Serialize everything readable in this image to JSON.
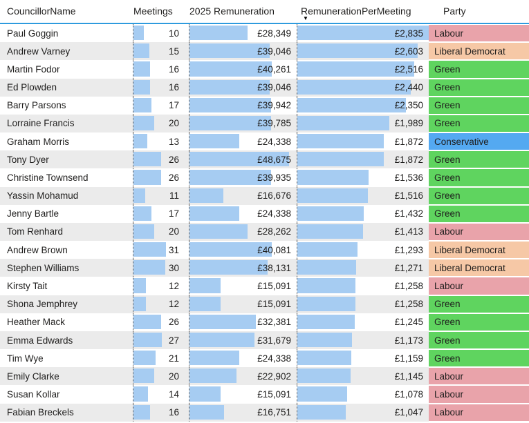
{
  "chart_data": {
    "type": "table",
    "title": "Councillor remuneration table",
    "columns": [
      "CouncillorName",
      "Meetings",
      "2025 Remuneration",
      "RemunerationPerMeeting",
      "Party"
    ],
    "sort": {
      "column": "RemunerationPerMeeting",
      "direction": "descending"
    },
    "rows": [
      [
        "Paul Goggin",
        10,
        28349,
        2835,
        "Labour"
      ],
      [
        "Andrew Varney",
        15,
        39046,
        2603,
        "Liberal Democrat"
      ],
      [
        "Martin Fodor",
        16,
        40261,
        2516,
        "Green"
      ],
      [
        "Ed Plowden",
        16,
        39046,
        2440,
        "Green"
      ],
      [
        "Barry Parsons",
        17,
        39942,
        2350,
        "Green"
      ],
      [
        "Lorraine Francis",
        20,
        39785,
        1989,
        "Green"
      ],
      [
        "Graham Morris",
        13,
        24338,
        1872,
        "Conservative"
      ],
      [
        "Tony Dyer",
        26,
        48675,
        1872,
        "Green"
      ],
      [
        "Christine Townsend",
        26,
        39935,
        1536,
        "Green"
      ],
      [
        "Yassin Mohamud",
        11,
        16676,
        1516,
        "Green"
      ],
      [
        "Jenny Bartle",
        17,
        24338,
        1432,
        "Green"
      ],
      [
        "Tom Renhard",
        20,
        28262,
        1413,
        "Labour"
      ],
      [
        "Andrew Brown",
        31,
        40081,
        1293,
        "Liberal Democrat"
      ],
      [
        "Stephen Williams",
        30,
        38131,
        1271,
        "Liberal Democrat"
      ],
      [
        "Kirsty Tait",
        12,
        15091,
        1258,
        "Labour"
      ],
      [
        "Shona Jemphrey",
        12,
        15091,
        1258,
        "Green"
      ],
      [
        "Heather Mack",
        26,
        32381,
        1245,
        "Green"
      ],
      [
        "Emma Edwards",
        27,
        31679,
        1173,
        "Green"
      ],
      [
        "Tim Wye",
        21,
        24338,
        1159,
        "Green"
      ],
      [
        "Emily Clarke",
        20,
        22902,
        1145,
        "Labour"
      ],
      [
        "Susan Kollar",
        14,
        15091,
        1078,
        "Labour"
      ],
      [
        "Fabian Breckels",
        16,
        16751,
        1047,
        "Labour"
      ]
    ],
    "currency_prefix": "£",
    "value_ranges": {
      "Meetings": [
        10,
        31
      ],
      "2025 Remuneration": [
        15091,
        48675
      ],
      "RemunerationPerMeeting": [
        1047,
        2835
      ]
    }
  },
  "icons": {
    "sort_descending": "▼"
  },
  "colors": {
    "header_underline": "#2e9bde",
    "data_bar": "#a6ccf2",
    "row_alt": "#ebebeb",
    "party": {
      "Labour": "#e9a3aa",
      "Liberal Democrat": "#f6c8a6",
      "Green": "#5fd45f",
      "Conservative": "#54a9f1"
    }
  }
}
